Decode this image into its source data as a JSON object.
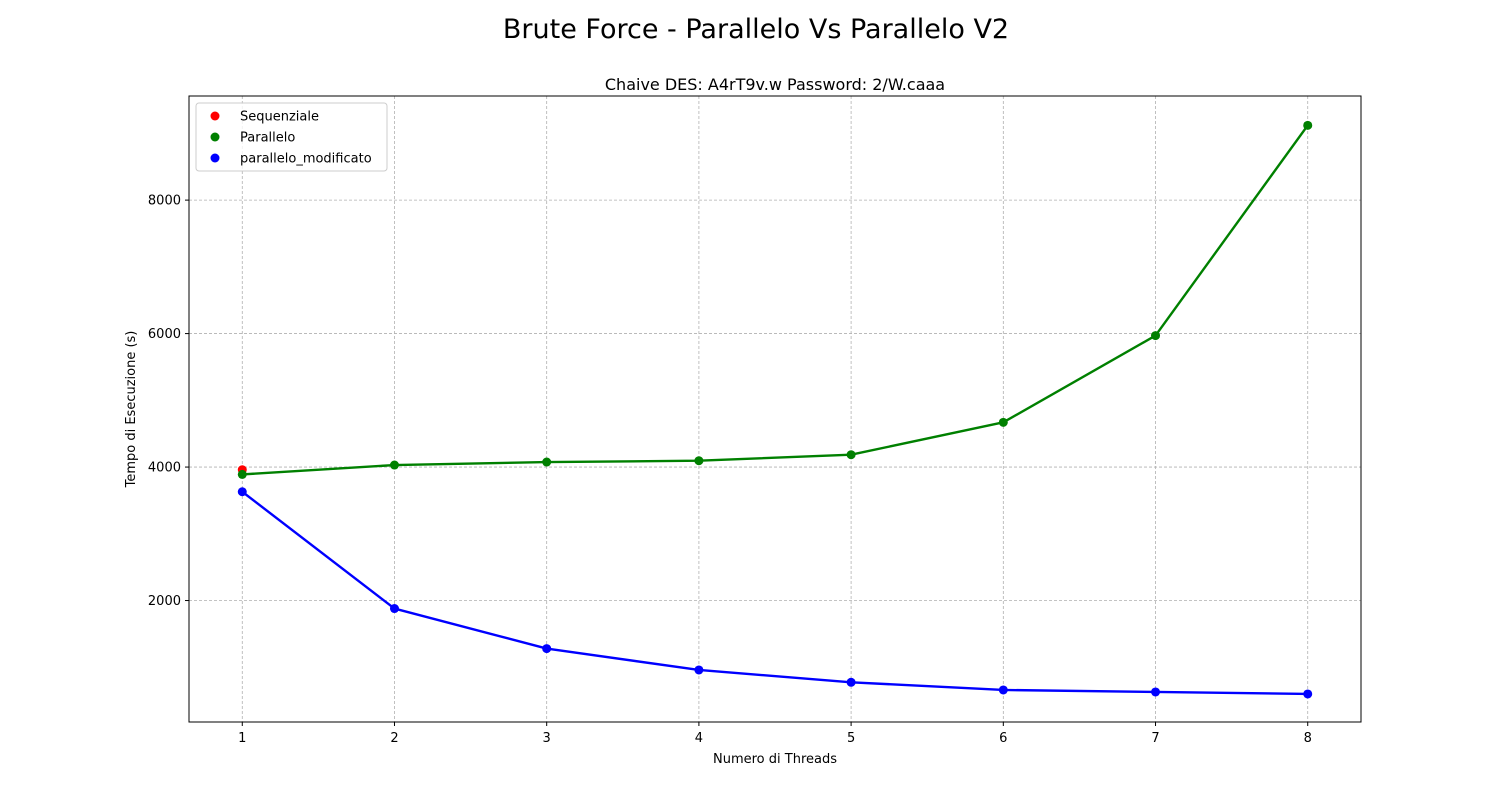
{
  "figure": {
    "suptitle": "Brute Force - Parallelo Vs Parallelo V2"
  },
  "chart_data": {
    "type": "line",
    "title": "Chaive DES: A4rT9v.w Password: 2/W.caaa",
    "xlabel": "Numero di Threads",
    "ylabel": "Tempo di Esecuzione (s)",
    "x_ticks": [
      1,
      2,
      3,
      4,
      5,
      6,
      7,
      8
    ],
    "y_ticks": [
      2000,
      4000,
      6000,
      8000
    ],
    "xlim": [
      0.65,
      8.35
    ],
    "ylim": [
      180,
      9560
    ],
    "grid": true,
    "legend_position": "upper-left",
    "series": [
      {
        "name": "Sequenziale",
        "color": "#ff0000",
        "marker_only": true,
        "x": [
          1
        ],
        "y": [
          3960
        ]
      },
      {
        "name": "Parallelo",
        "color": "#008000",
        "marker_only": false,
        "x": [
          1,
          2,
          3,
          4,
          5,
          6,
          7,
          8
        ],
        "y": [
          3890,
          4030,
          4075,
          4095,
          4185,
          4670,
          5970,
          9120
        ]
      },
      {
        "name": "parallelo_modificato",
        "color": "#0000ff",
        "marker_only": false,
        "x": [
          1,
          2,
          3,
          4,
          5,
          6,
          7,
          8
        ],
        "y": [
          3630,
          1880,
          1280,
          960,
          775,
          660,
          630,
          600
        ]
      }
    ]
  }
}
